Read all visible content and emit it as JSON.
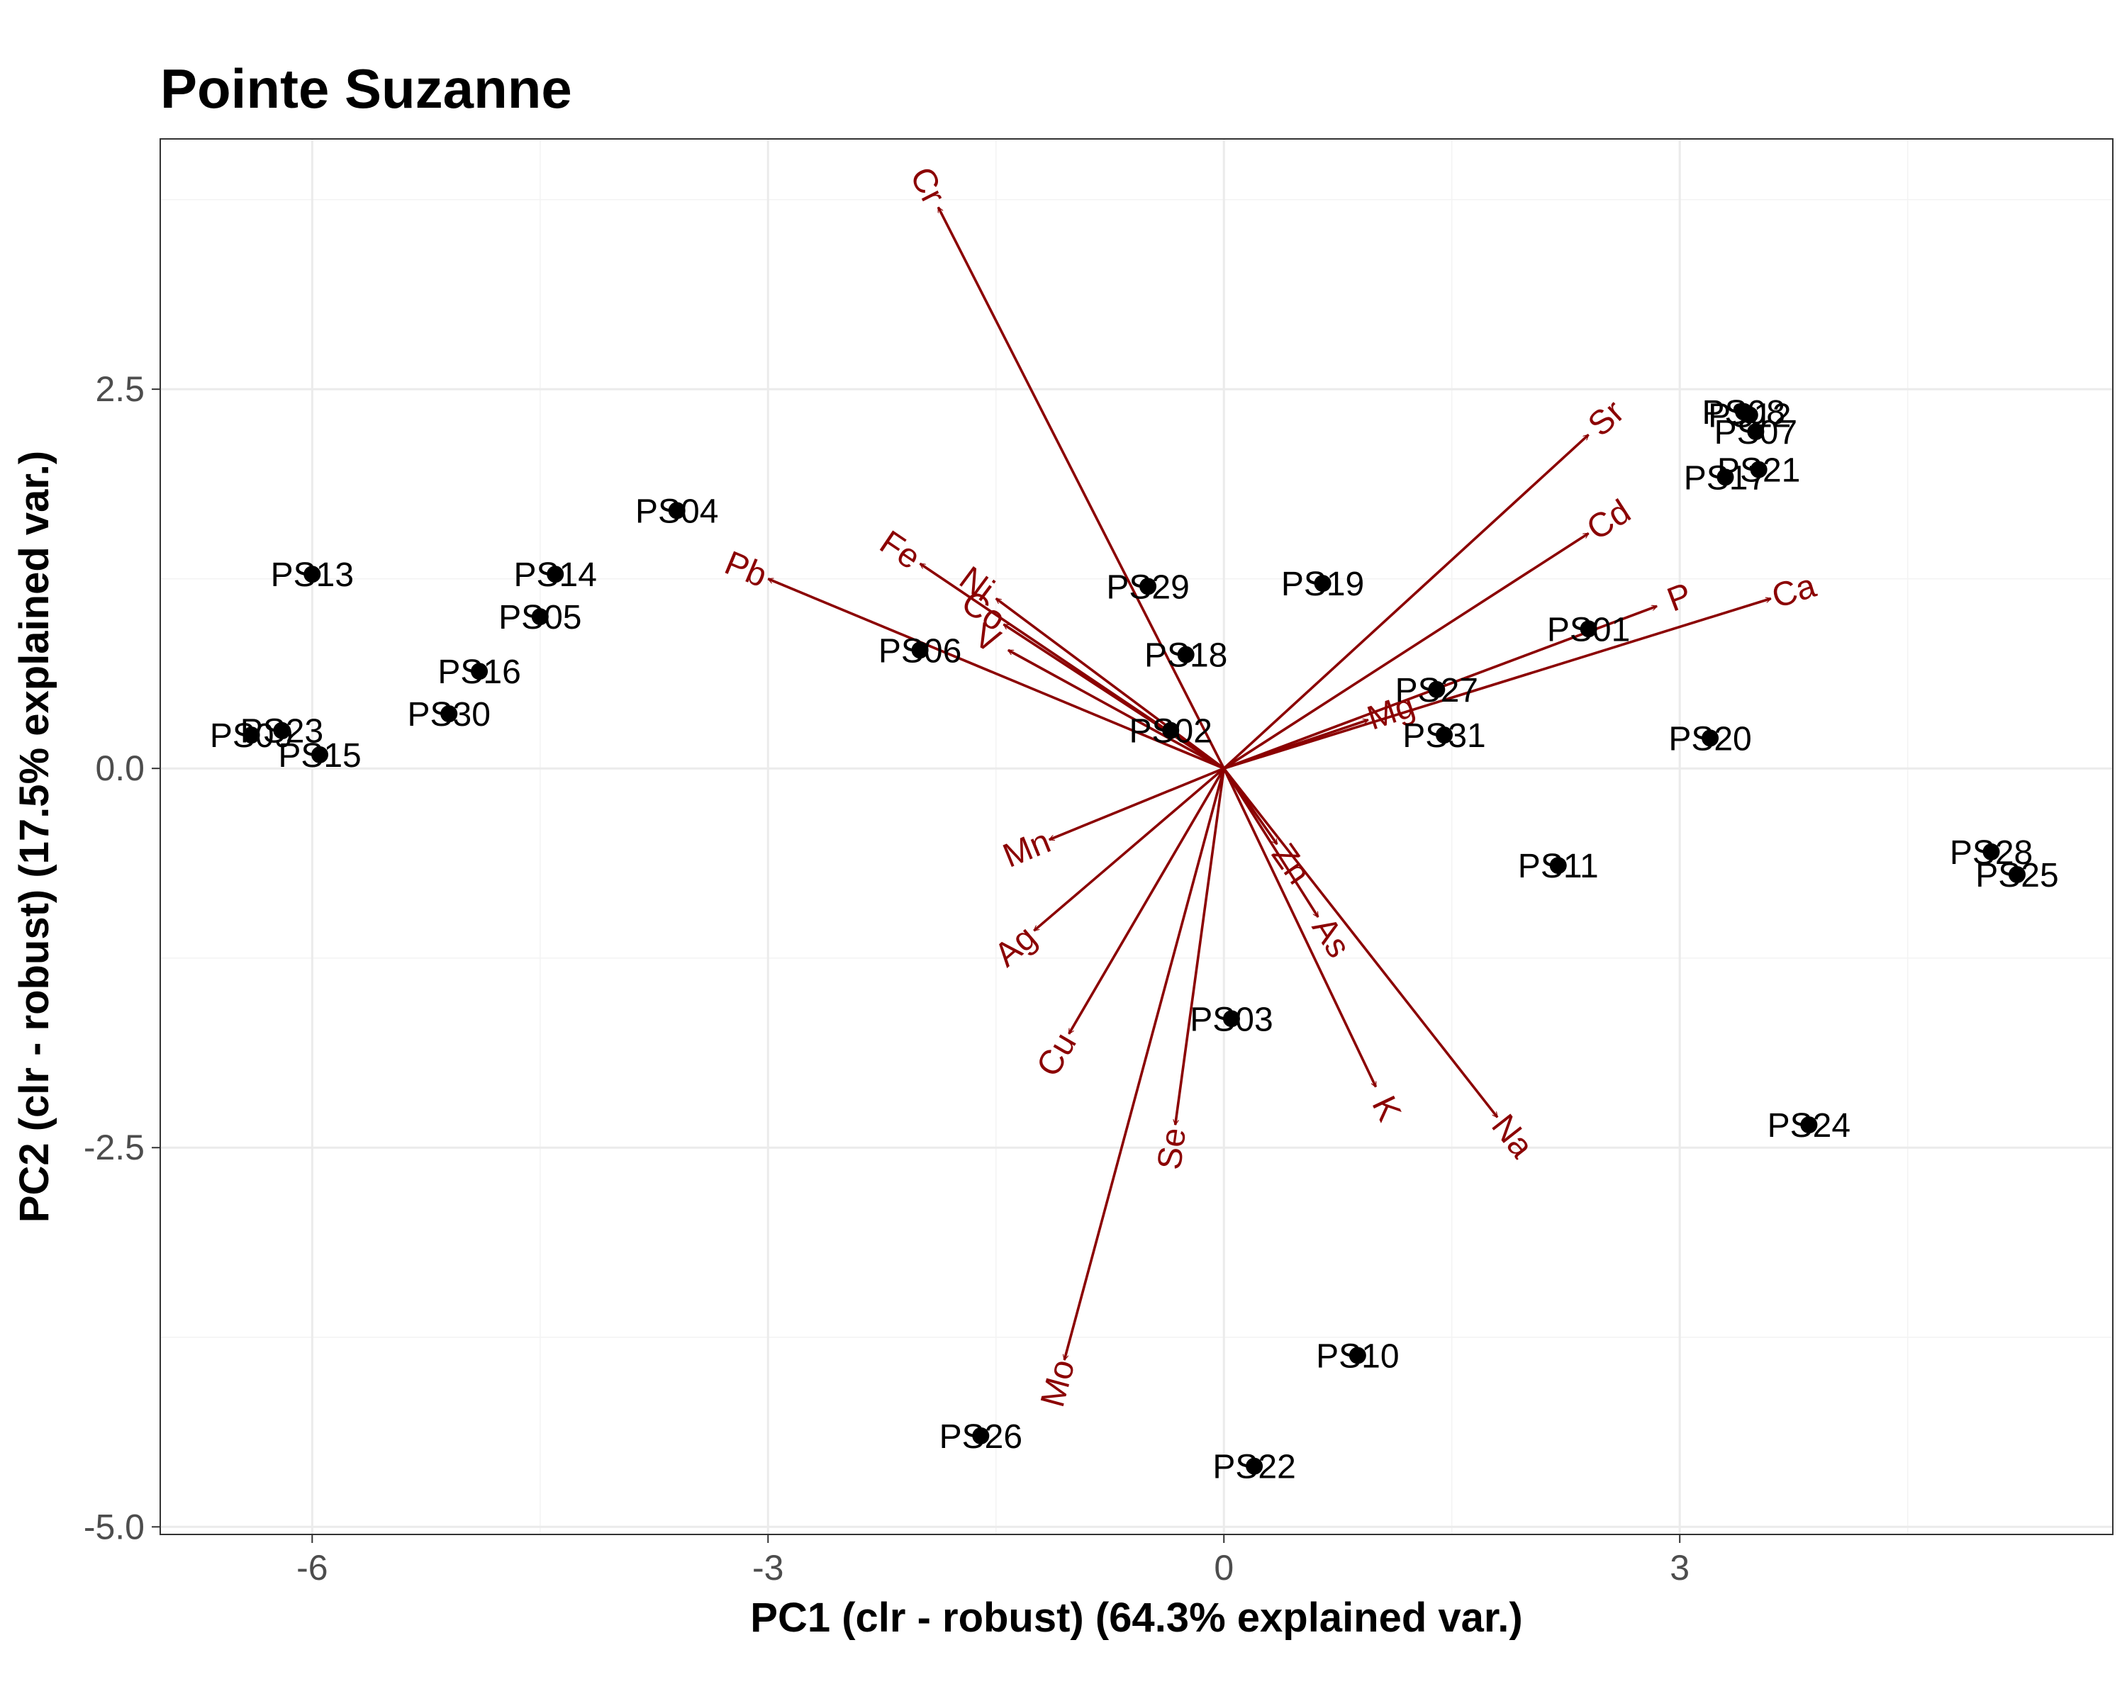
{
  "chart_data": {
    "type": "scatter",
    "title": "Pointe Suzanne",
    "xlabel": "PC1 (clr - robust) (64.3% explained var.)",
    "ylabel": "PC2 (clr - robust) (17.5% explained var.)",
    "xlim": [
      -7.0,
      5.85
    ],
    "ylim": [
      -5.05,
      4.15
    ],
    "x_ticks": [
      -6,
      -3,
      0,
      3
    ],
    "y_ticks": [
      2.5,
      0.0,
      -2.5,
      -5.0
    ],
    "x_tick_labels": [
      "-6",
      "-3",
      "0",
      "3"
    ],
    "y_tick_labels": [
      "2.5",
      "0.0",
      "-2.5",
      "-5.0"
    ],
    "grid": true,
    "colors": {
      "points": "#000000",
      "loadings": "#8b0000"
    },
    "points": [
      {
        "label": "PS13",
        "x": -6.0,
        "y": 1.28
      },
      {
        "label": "PS14",
        "x": -4.4,
        "y": 1.28
      },
      {
        "label": "PS05",
        "x": -4.5,
        "y": 1.0
      },
      {
        "label": "PS04",
        "x": -3.6,
        "y": 1.7
      },
      {
        "label": "PS16",
        "x": -4.9,
        "y": 0.64
      },
      {
        "label": "PS30",
        "x": -5.1,
        "y": 0.36
      },
      {
        "label": "PS09",
        "x": -6.4,
        "y": 0.22
      },
      {
        "label": "PS23",
        "x": -6.2,
        "y": 0.25
      },
      {
        "label": "PS15",
        "x": -5.95,
        "y": 0.09
      },
      {
        "label": "PS06",
        "x": -2.0,
        "y": 0.78
      },
      {
        "label": "PS29",
        "x": -0.5,
        "y": 1.2
      },
      {
        "label": "PS18",
        "x": -0.25,
        "y": 0.75
      },
      {
        "label": "PS02",
        "x": -0.35,
        "y": 0.25
      },
      {
        "label": "PS19",
        "x": 0.65,
        "y": 1.22
      },
      {
        "label": "PS27",
        "x": 1.4,
        "y": 0.52
      },
      {
        "label": "PS31",
        "x": 1.45,
        "y": 0.22
      },
      {
        "label": "PS01",
        "x": 2.4,
        "y": 0.92
      },
      {
        "label": "PS20",
        "x": 3.2,
        "y": 0.2
      },
      {
        "label": "PS08",
        "x": 3.42,
        "y": 2.35
      },
      {
        "label": "PS12",
        "x": 3.46,
        "y": 2.33
      },
      {
        "label": "PS07",
        "x": 3.5,
        "y": 2.22
      },
      {
        "label": "PS17",
        "x": 3.3,
        "y": 1.92
      },
      {
        "label": "PS21",
        "x": 3.52,
        "y": 1.97
      },
      {
        "label": "PS11",
        "x": 2.2,
        "y": -0.64
      },
      {
        "label": "PS28",
        "x": 5.05,
        "y": -0.55
      },
      {
        "label": "PS25",
        "x": 5.22,
        "y": -0.7
      },
      {
        "label": "PS03",
        "x": 0.05,
        "y": -1.65
      },
      {
        "label": "PS24",
        "x": 3.85,
        "y": -2.35
      },
      {
        "label": "PS10",
        "x": 0.88,
        "y": -3.87
      },
      {
        "label": "PS26",
        "x": -1.6,
        "y": -4.4
      },
      {
        "label": "PS22",
        "x": 0.2,
        "y": -4.6
      }
    ],
    "loadings": [
      {
        "label": "Cr",
        "x": -1.88,
        "y": 3.7
      },
      {
        "label": "Pb",
        "x": -3.0,
        "y": 1.25
      },
      {
        "label": "Fe",
        "x": -2.0,
        "y": 1.35
      },
      {
        "label": "Ni",
        "x": -1.5,
        "y": 1.12
      },
      {
        "label": "Co",
        "x": -1.45,
        "y": 0.95
      },
      {
        "label": "V",
        "x": -1.42,
        "y": 0.78
      },
      {
        "label": "Sr",
        "x": 2.4,
        "y": 2.2
      },
      {
        "label": "Cd",
        "x": 2.4,
        "y": 1.55
      },
      {
        "label": "P",
        "x": 2.85,
        "y": 1.07
      },
      {
        "label": "Ca",
        "x": 3.6,
        "y": 1.12
      },
      {
        "label": "Mg",
        "x": 0.95,
        "y": 0.32
      },
      {
        "label": "Mn",
        "x": -1.15,
        "y": -0.47
      },
      {
        "label": "Ag",
        "x": -1.25,
        "y": -1.07
      },
      {
        "label": "Cu",
        "x": -1.02,
        "y": -1.75
      },
      {
        "label": "Se",
        "x": -0.32,
        "y": -2.35
      },
      {
        "label": "Mo",
        "x": -1.05,
        "y": -3.9
      },
      {
        "label": "Zn",
        "x": 0.35,
        "y": -0.5
      },
      {
        "label": "As",
        "x": 0.62,
        "y": -0.98
      },
      {
        "label": "K",
        "x": 1.0,
        "y": -2.1
      },
      {
        "label": "Na",
        "x": 1.8,
        "y": -2.3
      }
    ]
  }
}
